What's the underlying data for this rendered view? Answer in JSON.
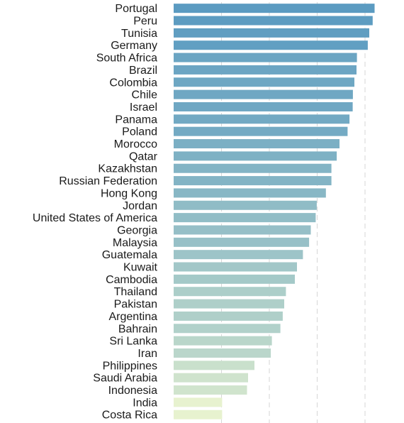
{
  "chart_data": {
    "type": "bar",
    "orientation": "horizontal",
    "title": "",
    "xlabel": "",
    "ylabel": "",
    "grid": "vertical dashed",
    "legend": "none",
    "xlim": [
      0,
      1
    ],
    "categories": [
      "Portugal",
      "Peru",
      "Tunisia",
      "Germany",
      "South Africa",
      "Brazil",
      "Colombia",
      "Chile",
      "Israel",
      "Panama",
      "Poland",
      "Morocco",
      "Qatar",
      "Kazakhstan",
      "Russian Federation",
      "Hong Kong",
      "Jordan",
      "United States of America",
      "Georgia",
      "Malaysia",
      "Guatemala",
      "Kuwait",
      "Cambodia",
      "Thailand",
      "Pakistan",
      "Argentina",
      "Bahrain",
      "Sri Lanka",
      "Iran",
      "Philippines",
      "Saudi Arabia",
      "Indonesia",
      "India",
      "Costa Rica"
    ],
    "values": [
      0.945,
      0.936,
      0.92,
      0.913,
      0.862,
      0.86,
      0.85,
      0.843,
      0.842,
      0.827,
      0.818,
      0.78,
      0.767,
      0.742,
      0.742,
      0.716,
      0.673,
      0.668,
      0.645,
      0.637,
      0.608,
      0.58,
      0.57,
      0.528,
      0.52,
      0.513,
      0.502,
      0.462,
      0.457,
      0.38,
      0.35,
      0.345,
      0.228,
      0.228
    ],
    "colors": {
      "high": "#5b9bc1",
      "low": "#e7f2cf",
      "grid": "#d6d6d6"
    }
  }
}
